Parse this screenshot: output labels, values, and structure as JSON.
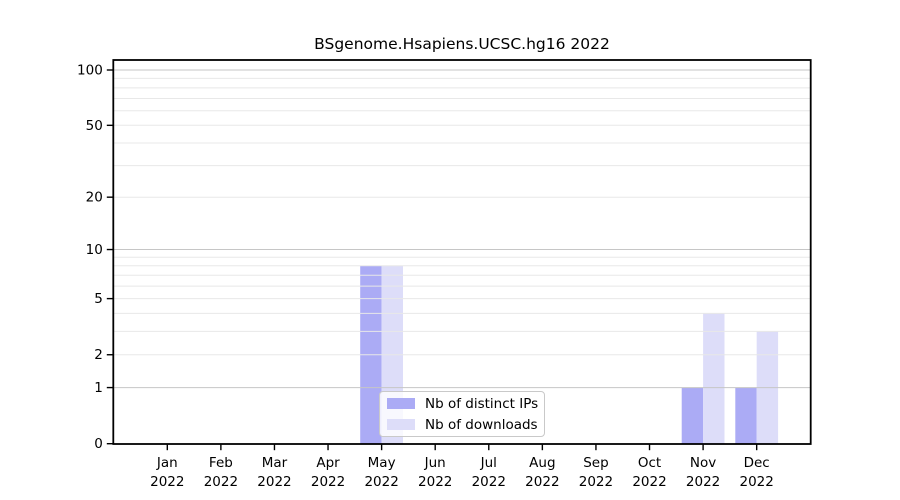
{
  "chart_data": {
    "type": "bar",
    "title": "BSgenome.Hsapiens.UCSC.hg16 2022",
    "year": "2022",
    "categories": [
      "Jan",
      "Feb",
      "Mar",
      "Apr",
      "May",
      "Jun",
      "Jul",
      "Aug",
      "Sep",
      "Oct",
      "Nov",
      "Dec"
    ],
    "series": [
      {
        "name": "Nb of distinct IPs",
        "color": "#ABABF5",
        "values": [
          0,
          0,
          0,
          0,
          8,
          0,
          0,
          0,
          0,
          0,
          1,
          1
        ]
      },
      {
        "name": "Nb of downloads",
        "color": "#DDDDF9",
        "values": [
          0,
          0,
          0,
          0,
          8,
          0,
          0,
          0,
          0,
          0,
          4,
          3
        ]
      }
    ],
    "xlabel": "",
    "ylabel": "",
    "ylim": [
      0,
      100
    ],
    "y_scale": "log1p",
    "y_ticks": [
      0,
      1,
      2,
      5,
      10,
      20,
      50,
      100
    ],
    "grid": "on",
    "grid_minor_values": [
      1,
      2,
      3,
      4,
      5,
      6,
      7,
      8,
      9,
      10,
      20,
      30,
      40,
      50,
      60,
      70,
      80,
      90,
      100
    ],
    "legend_position": "lower-center-inside",
    "colors": {
      "axis": "#000000",
      "grid_major": "#c6c6c6",
      "grid_minor": "#e8e8e8",
      "tick_label": "#000000",
      "background": "#ffffff"
    }
  }
}
